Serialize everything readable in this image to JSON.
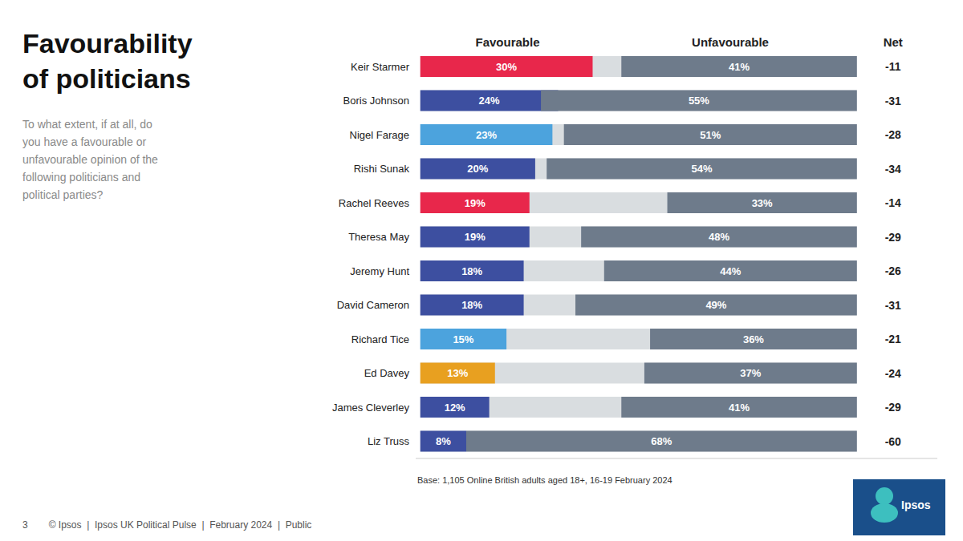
{
  "chart_data": {
    "type": "bar",
    "orientation": "horizontal",
    "title": "Favourability\nof politicians",
    "subtitle": "To what extent, if at all, do\nyou have a favourable or\nunfavourable opinion of the\nfollowing politicians and\npolitical parties?",
    "categories": [
      "Keir Starmer",
      "Boris Johnson",
      "Nigel Farage",
      "Rishi Sunak",
      "Rachel Reeves",
      "Theresa May",
      "Jeremy Hunt",
      "David Cameron",
      "Richard Tice",
      "Ed Davey",
      "James Cleverley",
      "Liz Truss"
    ],
    "series": [
      {
        "name": "Favourable",
        "values": [
          30,
          24,
          23,
          20,
          19,
          19,
          18,
          18,
          15,
          13,
          12,
          8
        ],
        "value_labels": [
          "30%",
          "24%",
          "23%",
          "20%",
          "19%",
          "19%",
          "18%",
          "18%",
          "15%",
          "13%",
          "12%",
          "8%"
        ],
        "colors": [
          "#e8274b",
          "#3d4fa0",
          "#4ca3dd",
          "#3d4fa0",
          "#e8274b",
          "#3d4fa0",
          "#3d4fa0",
          "#3d4fa0",
          "#4ca3dd",
          "#e8a020",
          "#3d4fa0",
          "#3d4fa0"
        ]
      },
      {
        "name": "Unfavourable",
        "values": [
          41,
          55,
          51,
          54,
          33,
          48,
          44,
          49,
          36,
          37,
          41,
          68
        ],
        "value_labels": [
          "41%",
          "55%",
          "51%",
          "54%",
          "33%",
          "48%",
          "44%",
          "49%",
          "36%",
          "37%",
          "41%",
          "68%"
        ],
        "color": "#6e7b8b"
      }
    ],
    "net_label": "Net",
    "net": [
      -11,
      -31,
      -28,
      -34,
      -14,
      -29,
      -26,
      -31,
      -21,
      -24,
      -29,
      -60
    ],
    "total": 76,
    "total_color": "#d9dde0",
    "xlim": [
      -0.8,
      90
    ],
    "tick_labels": "y",
    "grid": false,
    "data_labels": true,
    "note": "Base: 1,105 Online British adults aged 18+, 16-19 February 2024",
    "footer": "© Ipsos  |  Ipsos UK Political Pulse  |  February 2024  |  Public",
    "page_number": "3",
    "logo": "Ipsos"
  }
}
